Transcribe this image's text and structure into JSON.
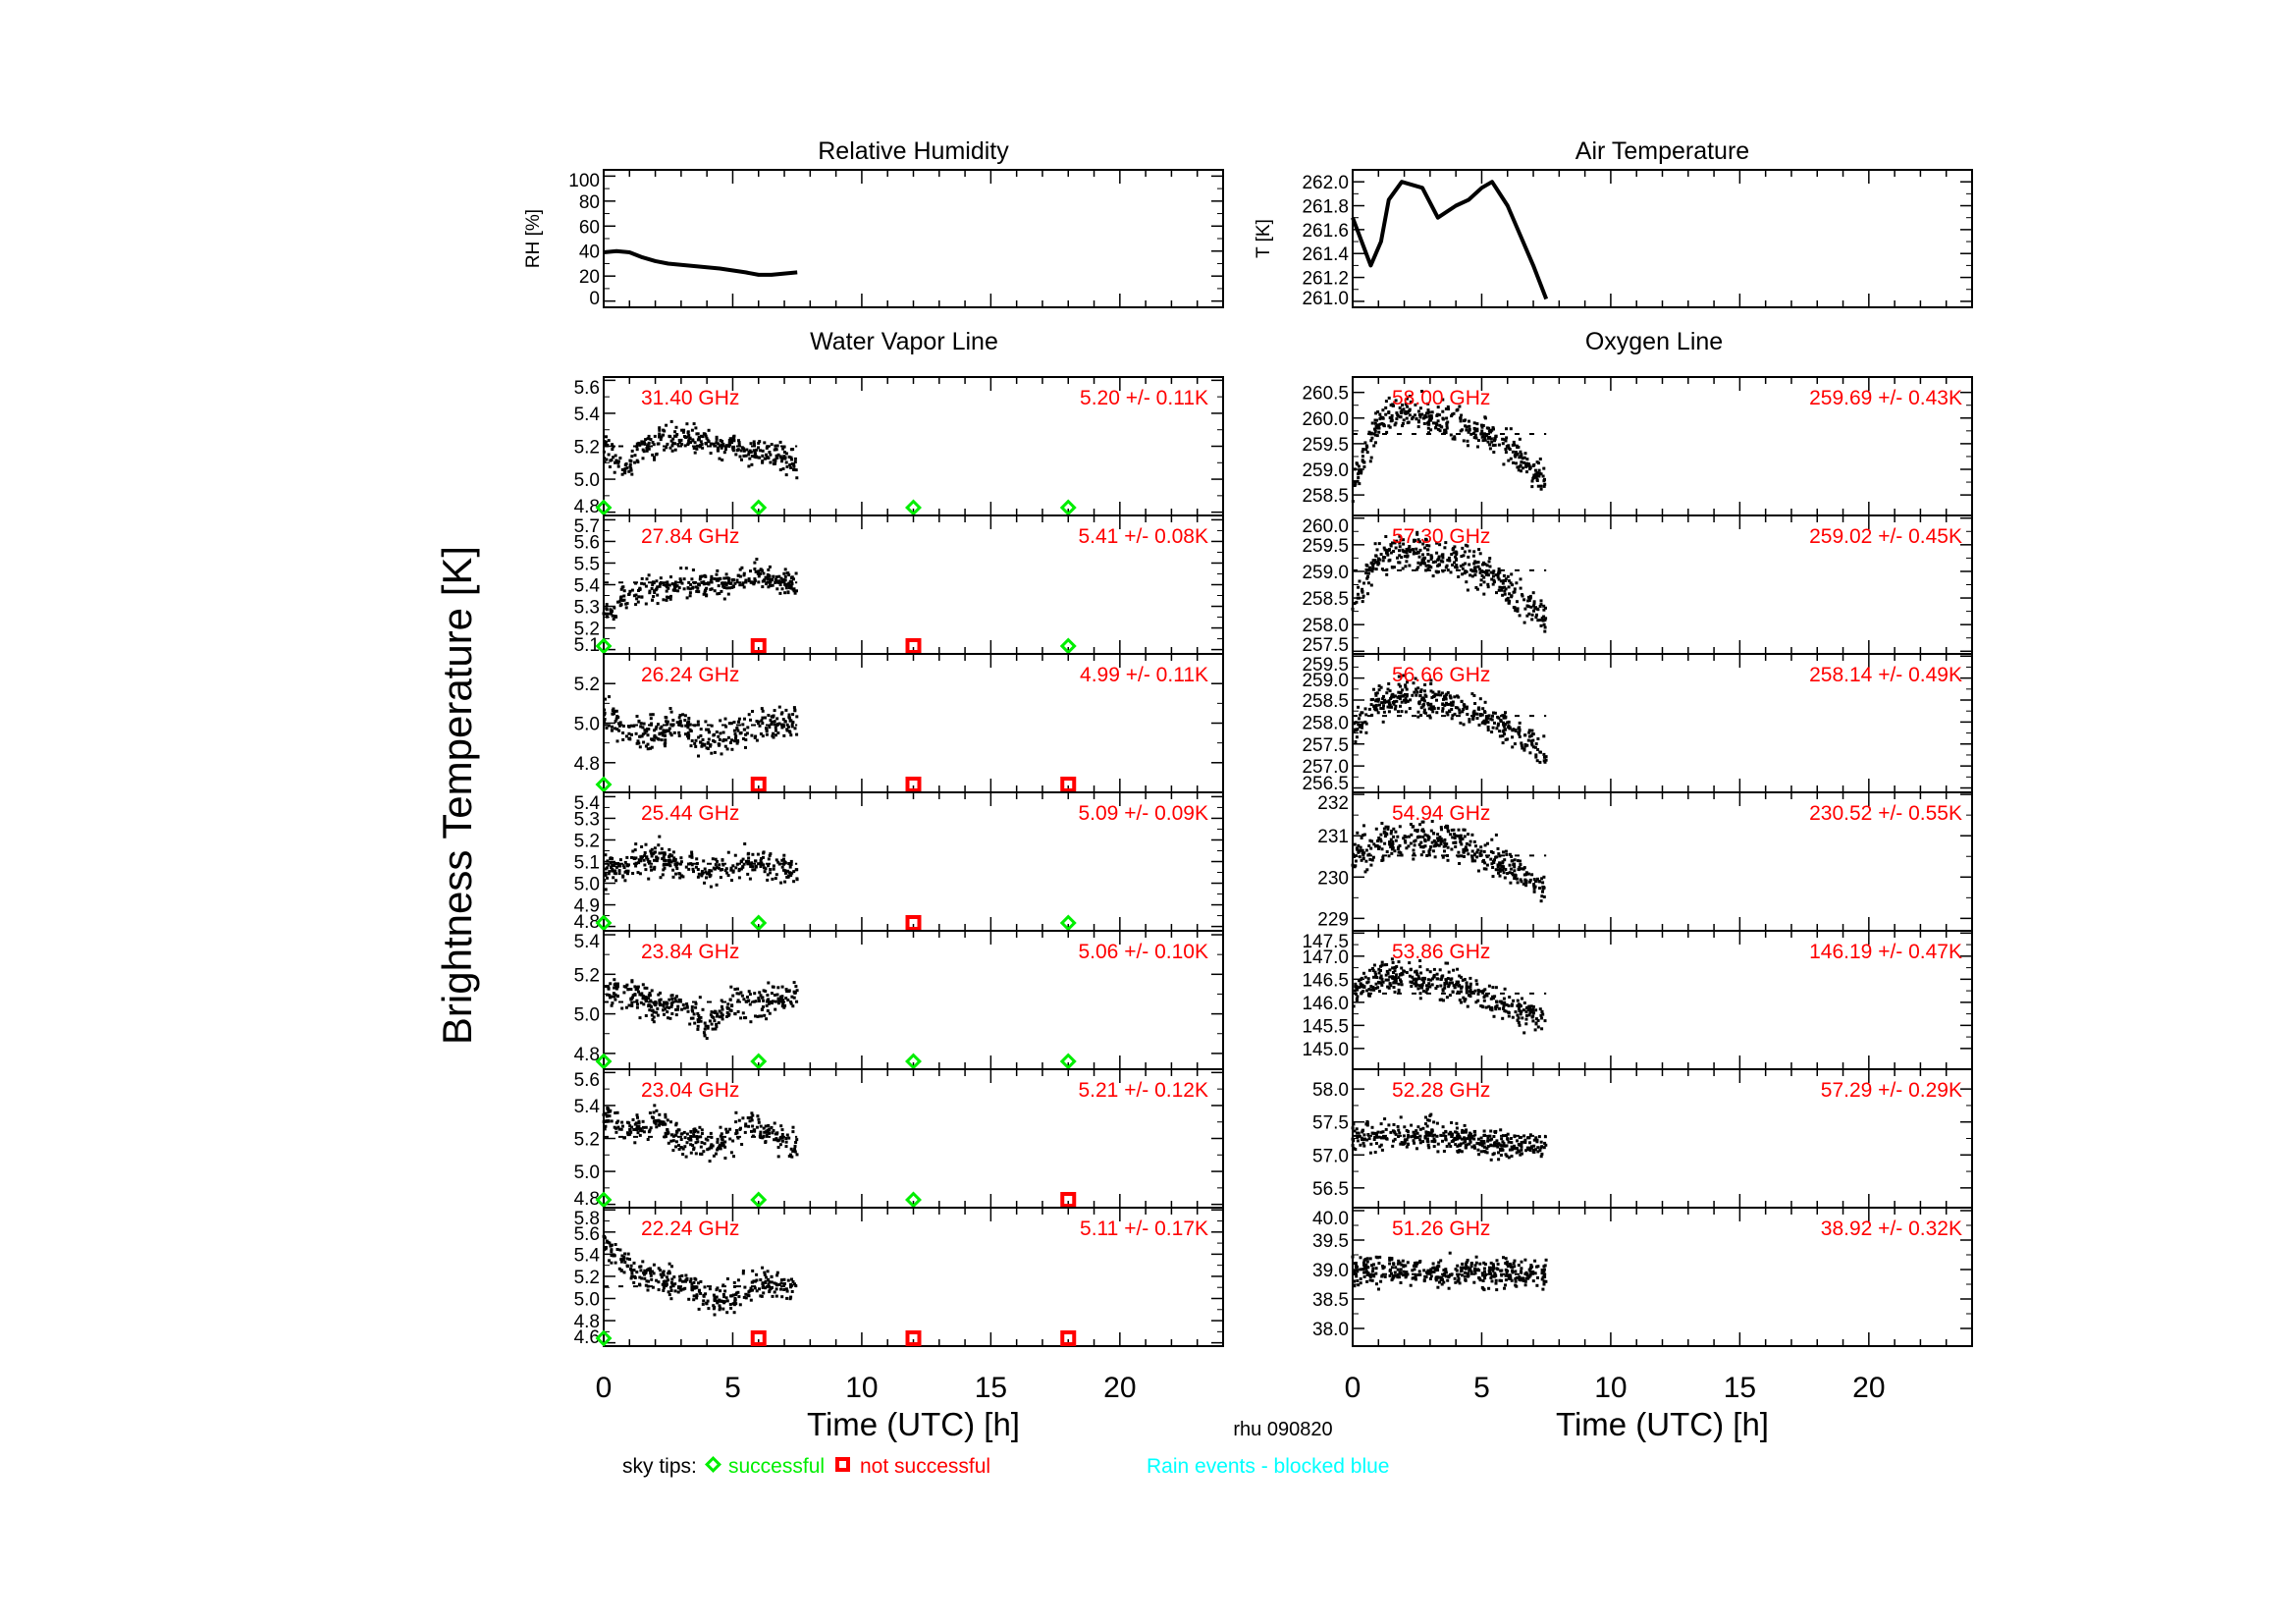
{
  "footer": {
    "station_date": "rhu 090820",
    "legend_prefix": "sky tips:",
    "legend_success": "successful",
    "legend_fail": "not successful",
    "rain_note": "Rain events - blocked blue",
    "ylabel_main": "Brightness Temperature [K]",
    "group_left": "Water Vapor Line",
    "group_right": "Oxygen Line"
  },
  "colors": {
    "success": "#00ee00",
    "fail": "#ff0000",
    "annotation": "#ff0000",
    "rain": "#00ffff",
    "data": "#000000"
  },
  "chart_data": [
    {
      "id": "rh",
      "type": "line",
      "title": "Relative Humidity",
      "ylabel": "RH [%]",
      "xlim": [
        0,
        24
      ],
      "ylim": [
        -5,
        105
      ],
      "yticks": [
        "0",
        "20",
        "40",
        "60",
        "80",
        "100"
      ],
      "x": [
        0,
        0.5,
        1,
        1.5,
        2,
        2.5,
        3.5,
        4.5,
        5.5,
        6,
        6.5,
        7,
        7.5
      ],
      "y": [
        39,
        40,
        39,
        35,
        32,
        30,
        28,
        26,
        23,
        21,
        21,
        22,
        23
      ]
    },
    {
      "id": "temp",
      "type": "line",
      "title": "Air Temperature",
      "ylabel": "T [K]",
      "xlim": [
        0,
        24
      ],
      "ylim": [
        260.95,
        262.1
      ],
      "yticks": [
        "261.0",
        "261.2",
        "261.4",
        "261.6",
        "261.8",
        "262.0"
      ],
      "x": [
        0,
        0.7,
        1.1,
        1.4,
        1.9,
        2.7,
        3.3,
        4.0,
        4.5,
        5.0,
        5.4,
        6.0,
        6.6,
        7.0,
        7.5
      ],
      "y": [
        261.7,
        261.3,
        261.5,
        261.85,
        262.0,
        261.95,
        261.7,
        261.8,
        261.85,
        261.95,
        262.0,
        261.8,
        261.5,
        261.3,
        261.02
      ]
    },
    {
      "id": "wv",
      "type": "scatter",
      "group": "Water Vapor Line",
      "xlabel": "Time (UTC) [h]",
      "xlim": [
        0,
        24
      ],
      "xticks": [
        "0",
        "5",
        "10",
        "15",
        "20"
      ],
      "sky_tip_times": [
        0,
        6,
        12,
        18
      ],
      "panels": [
        {
          "freq": "31.40 GHz",
          "stat": "5.20 +/-  0.11K",
          "mean": 5.2,
          "std": 0.11,
          "ylim": [
            4.78,
            5.62
          ],
          "yticks": [
            "4.8",
            "5.0",
            "5.2",
            "5.4",
            "5.6"
          ],
          "trend_x": [
            0,
            1,
            1.5,
            3,
            5,
            7,
            7.5
          ],
          "trend_y": [
            5.2,
            5.05,
            5.2,
            5.25,
            5.2,
            5.15,
            5.05
          ],
          "sky_tips": [
            "successful",
            "successful",
            "successful",
            "successful"
          ]
        },
        {
          "freq": "27.84 GHz",
          "stat": "5.41 +/-  0.08K",
          "mean": 5.41,
          "std": 0.08,
          "ylim": [
            5.08,
            5.72
          ],
          "yticks": [
            "5.1",
            "5.2",
            "5.3",
            "5.4",
            "5.5",
            "5.6",
            "5.7"
          ],
          "trend_x": [
            0,
            1,
            3,
            5,
            6,
            7.5
          ],
          "trend_y": [
            5.25,
            5.35,
            5.4,
            5.4,
            5.45,
            5.4
          ],
          "sky_tips": [
            "successful",
            "not successful",
            "not successful",
            "successful"
          ]
        },
        {
          "freq": "26.24 GHz",
          "stat": "4.99 +/-  0.11K",
          "mean": 4.99,
          "std": 0.11,
          "ylim": [
            4.65,
            5.35
          ],
          "yticks": [
            "4.8",
            "5.0",
            "5.2"
          ],
          "trend_x": [
            0,
            1,
            2,
            3,
            4,
            5,
            6,
            7.5
          ],
          "trend_y": [
            5.05,
            4.95,
            4.95,
            5.0,
            4.9,
            4.95,
            5.0,
            5.0
          ],
          "sky_tips": [
            "successful",
            "not successful",
            "not successful",
            "not successful"
          ]
        },
        {
          "freq": "25.44 GHz",
          "stat": "5.09 +/-  0.09K",
          "mean": 5.09,
          "std": 0.09,
          "ylim": [
            4.78,
            5.42
          ],
          "yticks": [
            "4.8",
            "4.9",
            "5.0",
            "5.1",
            "5.2",
            "5.3",
            "5.4"
          ],
          "trend_x": [
            0,
            2,
            4,
            6,
            7.5
          ],
          "trend_y": [
            5.05,
            5.12,
            5.05,
            5.1,
            5.05
          ],
          "sky_tips": [
            "successful",
            "successful",
            "not successful",
            "successful"
          ]
        },
        {
          "freq": "23.84 GHz",
          "stat": "5.06 +/-  0.10K",
          "mean": 5.06,
          "std": 0.1,
          "ylim": [
            4.72,
            5.42
          ],
          "yticks": [
            "4.8",
            "5.0",
            "5.2",
            "5.4"
          ],
          "trend_x": [
            0,
            1,
            2,
            3,
            4,
            5,
            6,
            7.5
          ],
          "trend_y": [
            5.1,
            5.1,
            5.05,
            5.05,
            4.95,
            5.05,
            5.05,
            5.1
          ],
          "sky_tips": [
            "successful",
            "successful",
            "successful",
            "successful"
          ]
        },
        {
          "freq": "23.04 GHz",
          "stat": "5.21 +/-  0.12K",
          "mean": 5.21,
          "std": 0.12,
          "ylim": [
            4.78,
            5.62
          ],
          "yticks": [
            "4.8",
            "5.0",
            "5.2",
            "5.4",
            "5.6"
          ],
          "trend_x": [
            0,
            1,
            2,
            3,
            4,
            5,
            5.5,
            7.5
          ],
          "trend_y": [
            5.35,
            5.25,
            5.3,
            5.2,
            5.15,
            5.2,
            5.3,
            5.15
          ],
          "sky_tips": [
            "successful",
            "successful",
            "successful",
            "not successful"
          ]
        },
        {
          "freq": "22.24 GHz",
          "stat": "5.11 +/-  0.17K",
          "mean": 5.11,
          "std": 0.17,
          "ylim": [
            4.57,
            5.82
          ],
          "yticks": [
            "4.6",
            "4.8",
            "5.0",
            "5.2",
            "5.4",
            "5.6",
            "5.8"
          ],
          "trend_x": [
            0,
            1,
            2,
            3,
            4,
            5,
            6,
            7.5
          ],
          "trend_y": [
            5.5,
            5.25,
            5.2,
            5.15,
            5.0,
            5.0,
            5.15,
            5.1
          ],
          "sky_tips": [
            "successful",
            "not successful",
            "not successful",
            "not successful"
          ]
        }
      ]
    },
    {
      "id": "o2",
      "type": "scatter",
      "group": "Oxygen Line",
      "xlabel": "Time (UTC) [h]",
      "xlim": [
        0,
        24
      ],
      "xticks": [
        "0",
        "5",
        "10",
        "15",
        "20"
      ],
      "panels": [
        {
          "freq": "58.00 GHz",
          "stat": "259.69 +/-  0.43K",
          "mean": 259.69,
          "std": 0.43,
          "ylim": [
            258.1,
            260.8
          ],
          "yticks": [
            "258.5",
            "259.0",
            "259.5",
            "260.0",
            "260.5"
          ],
          "trend_x": [
            0,
            1,
            2,
            4,
            5.5,
            7,
            7.5
          ],
          "trend_y": [
            258.7,
            259.9,
            260.1,
            259.9,
            259.6,
            259.0,
            258.8
          ]
        },
        {
          "freq": "57.30 GHz",
          "stat": "259.02 +/-  0.45K",
          "mean": 259.02,
          "std": 0.45,
          "ylim": [
            257.45,
            260.05
          ],
          "yticks": [
            "257.5",
            "258.0",
            "258.5",
            "259.0",
            "259.5",
            "260.0"
          ],
          "trend_x": [
            0,
            1,
            2,
            4,
            5.5,
            7,
            7.5
          ],
          "trend_y": [
            258.3,
            259.3,
            259.4,
            259.2,
            258.9,
            258.3,
            258.1
          ]
        },
        {
          "freq": "56.66 GHz",
          "stat": "258.14 +/-  0.49K",
          "mean": 258.14,
          "std": 0.49,
          "ylim": [
            256.4,
            259.55
          ],
          "yticks": [
            "256.5",
            "257.0",
            "257.5",
            "258.0",
            "258.5",
            "259.0",
            "259.5"
          ],
          "trend_x": [
            0,
            1,
            2,
            4,
            5.5,
            7,
            7.5
          ],
          "trend_y": [
            257.8,
            258.5,
            258.6,
            258.4,
            258.0,
            257.5,
            257.2
          ]
        },
        {
          "freq": "54.94 GHz",
          "stat": "230.52 +/-  0.55K",
          "mean": 230.52,
          "std": 0.55,
          "ylim": [
            228.7,
            232.05
          ],
          "yticks": [
            "229",
            "230",
            "231",
            "232"
          ],
          "trend_x": [
            0,
            1,
            2,
            4,
            5.5,
            7,
            7.5
          ],
          "trend_y": [
            230.5,
            230.8,
            230.9,
            230.9,
            230.4,
            229.9,
            229.7
          ]
        },
        {
          "freq": "53.86 GHz",
          "stat": "146.19 +/-  0.47K",
          "mean": 146.19,
          "std": 0.47,
          "ylim": [
            144.55,
            147.55
          ],
          "yticks": [
            "145.0",
            "145.5",
            "146.0",
            "146.5",
            "147.0",
            "147.5"
          ],
          "trend_x": [
            0,
            1,
            2,
            4,
            5.5,
            7,
            7.5
          ],
          "trend_y": [
            146.2,
            146.5,
            146.6,
            146.4,
            146.0,
            145.7,
            145.5
          ]
        },
        {
          "freq": "52.28 GHz",
          "stat": "57.29 +/-  0.29K",
          "mean": 57.29,
          "std": 0.29,
          "ylim": [
            56.2,
            58.3
          ],
          "yticks": [
            "56.5",
            "57.0",
            "57.5",
            "58.0"
          ],
          "trend_x": [
            0,
            3,
            7.5
          ],
          "trend_y": [
            57.3,
            57.3,
            57.1
          ]
        },
        {
          "freq": "51.26 GHz",
          "stat": "38.92 +/-  0.32K",
          "mean": 38.92,
          "std": 0.32,
          "ylim": [
            37.7,
            40.05
          ],
          "yticks": [
            "38.0",
            "38.5",
            "39.0",
            "39.5",
            "40.0"
          ],
          "trend_x": [
            0,
            7.5
          ],
          "trend_y": [
            39.0,
            38.9
          ]
        }
      ]
    }
  ]
}
